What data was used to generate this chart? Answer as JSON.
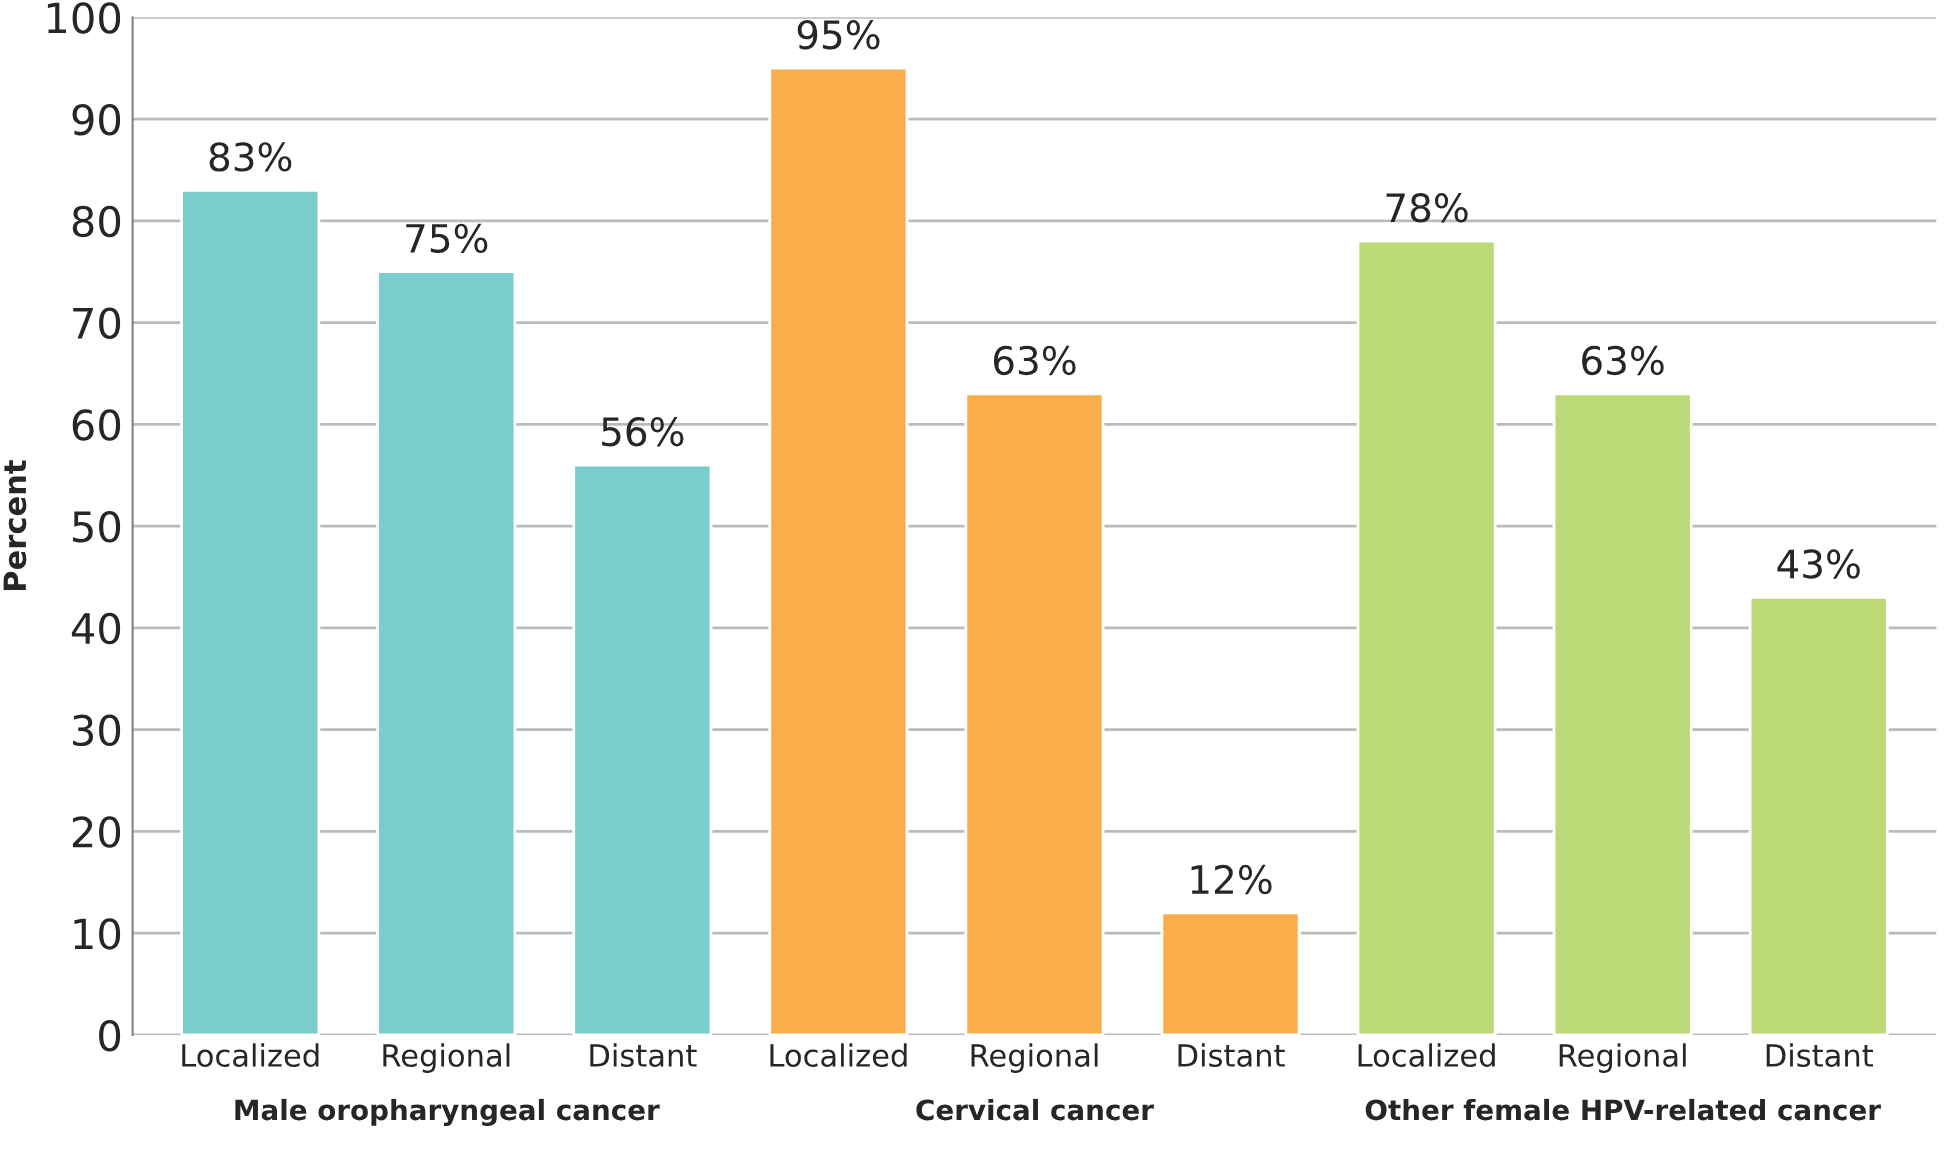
{
  "chart_data": {
    "type": "bar",
    "ylabel": "Percent",
    "categories": [
      "Localized",
      "Regional",
      "Distant",
      "Localized",
      "Regional",
      "Distant",
      "Localized",
      "Regional",
      "Distant"
    ],
    "values": [
      83,
      75,
      56,
      95,
      63,
      12,
      78,
      63,
      43
    ],
    "value_labels": [
      "83%",
      "75%",
      "56%",
      "95%",
      "63%",
      "12%",
      "78%",
      "63%",
      "43%"
    ],
    "colors": [
      "#79cdcd",
      "#79cdcd",
      "#79cdcd",
      "#f9ae4b",
      "#f9ae4b",
      "#f9ae4b",
      "#bcd977",
      "#bcd977",
      "#bcd977"
    ],
    "annotations": [
      "Male oropharyngeal cancer",
      "Cervical cancer",
      "Other female HPV-related cancer"
    ],
    "ylim": [
      0,
      100
    ],
    "yticks": [
      0,
      10,
      20,
      30,
      40,
      50,
      60,
      70,
      80,
      90,
      100
    ],
    "grid": "y"
  }
}
